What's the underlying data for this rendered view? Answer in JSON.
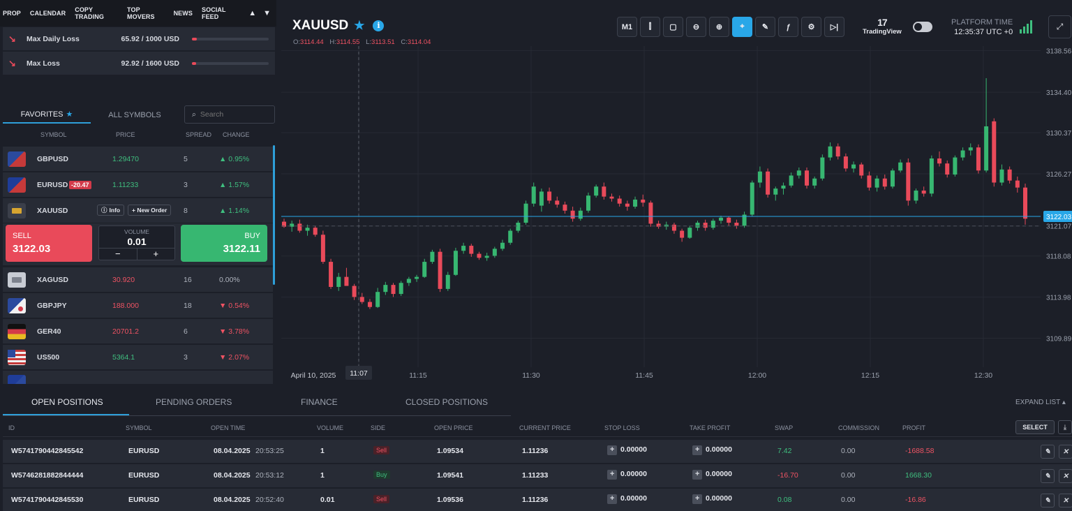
{
  "nav": {
    "items": [
      "PROP",
      "CALENDAR",
      "COPY TRADING",
      "TOP MOVERS",
      "NEWS",
      "SOCIAL FEED"
    ]
  },
  "risk": [
    {
      "label": "Max Daily Loss",
      "value": "65.92 / 1000 USD",
      "fraction": 0.066
    },
    {
      "label": "Max Loss",
      "value": "92.92 / 1600 USD",
      "fraction": 0.058
    }
  ],
  "watchlist": {
    "tabs": [
      "FAVORITES",
      "ALL SYMBOLS"
    ],
    "search_placeholder": "Search",
    "columns": [
      "SYMBOL",
      "PRICE",
      "SPREAD",
      "CHANGE"
    ],
    "rows": [
      {
        "symbol": "GBPUSD",
        "price": "1.29470",
        "spread": "5",
        "change": "▲ 0.95%",
        "dir": "up"
      },
      {
        "symbol": "EURUSD",
        "badge": "-20.47",
        "price": "1.11233",
        "spread": "3",
        "change": "▲ 1.57%",
        "dir": "up"
      },
      {
        "symbol": "XAUUSD",
        "info": "Info",
        "new_order": "+ New Order",
        "spread": "8",
        "change": "▲ 1.14%",
        "dir": "up"
      },
      {
        "symbol": "XAGUSD",
        "price": "30.920",
        "spread": "16",
        "change": "0.00%",
        "dir": "flat"
      },
      {
        "symbol": "GBPJPY",
        "price": "188.000",
        "spread": "18",
        "change": "▼ 0.54%",
        "dir": "down"
      },
      {
        "symbol": "GER40",
        "price": "20701.2",
        "spread": "6",
        "change": "▼ 3.78%",
        "dir": "down"
      },
      {
        "symbol": "US500",
        "price": "5364.1",
        "spread": "3",
        "change": "▼ 2.07%",
        "dir": "down"
      }
    ]
  },
  "trade": {
    "sell_label": "SELL",
    "sell_price": "3122.03",
    "volume_label": "VOLUME",
    "volume": "0.01",
    "buy_label": "BUY",
    "buy_price": "3122.11"
  },
  "chart": {
    "symbol": "XAUUSD",
    "ohlc": {
      "o": "3114.44",
      "h": "3114.55",
      "l": "3113.51",
      "c": "3114.04"
    },
    "timeframe": "M1",
    "tradingview": "TradingView",
    "platform_time_label": "PLATFORM TIME",
    "platform_time": "12:35:37 UTC +0",
    "current_price": "3122.03"
  },
  "chart_data": {
    "type": "candlestick",
    "y_ticks": [
      "3138.56",
      "3134.40",
      "3130.37",
      "3126.27",
      "3122.03",
      "3121.07",
      "3118.08",
      "3113.98",
      "3109.89"
    ],
    "x_ticks": [
      "April 10, 2025",
      "11:07",
      "11:15",
      "11:30",
      "11:45",
      "12:00",
      "12:15",
      "12:30"
    ],
    "ylim": [
      3107,
      3139
    ],
    "candles": [
      [
        3121.5,
        3121.8,
        3120.9,
        3121.0
      ],
      [
        3121.0,
        3121.6,
        3120.5,
        3121.3
      ],
      [
        3121.3,
        3121.7,
        3120.4,
        3120.6
      ],
      [
        3120.6,
        3121.2,
        3120.1,
        3120.9
      ],
      [
        3120.9,
        3121.1,
        3120.0,
        3120.2
      ],
      [
        3120.2,
        3120.6,
        3117.3,
        3117.5
      ],
      [
        3117.5,
        3117.8,
        3114.8,
        3115.0
      ],
      [
        3115.0,
        3116.4,
        3114.6,
        3116.0
      ],
      [
        3116.0,
        3116.9,
        3115.4,
        3115.1
      ],
      [
        3115.1,
        3115.3,
        3113.7,
        3114.0
      ],
      [
        3114.0,
        3114.4,
        3113.3,
        3113.5
      ],
      [
        3113.5,
        3113.8,
        3112.8,
        3113.0
      ],
      [
        3113.0,
        3114.9,
        3112.9,
        3114.5
      ],
      [
        3114.5,
        3115.5,
        3114.2,
        3115.2
      ],
      [
        3115.2,
        3115.4,
        3114.0,
        3114.3
      ],
      [
        3114.3,
        3115.6,
        3114.1,
        3115.4
      ],
      [
        3115.4,
        3116.0,
        3115.1,
        3115.8
      ],
      [
        3115.8,
        3116.2,
        3115.5,
        3116.0
      ],
      [
        3116.0,
        3117.8,
        3115.9,
        3117.5
      ],
      [
        3117.5,
        3118.7,
        3117.3,
        3118.5
      ],
      [
        3118.5,
        3118.8,
        3114.5,
        3114.8
      ],
      [
        3114.8,
        3116.5,
        3114.6,
        3116.2
      ],
      [
        3116.2,
        3118.9,
        3116.1,
        3118.6
      ],
      [
        3118.6,
        3119.4,
        3118.3,
        3119.1
      ],
      [
        3119.1,
        3119.3,
        3118.0,
        3118.3
      ],
      [
        3118.3,
        3118.5,
        3117.7,
        3117.9
      ],
      [
        3117.9,
        3118.4,
        3117.6,
        3118.1
      ],
      [
        3118.1,
        3119.0,
        3117.9,
        3118.8
      ],
      [
        3118.8,
        3119.7,
        3118.6,
        3119.4
      ],
      [
        3119.4,
        3120.8,
        3119.2,
        3120.6
      ],
      [
        3120.6,
        3121.6,
        3120.4,
        3121.4
      ],
      [
        3121.4,
        3123.6,
        3121.2,
        3123.3
      ],
      [
        3123.3,
        3125.4,
        3123.0,
        3125.0
      ],
      [
        3123.1,
        3124.8,
        3122.5,
        3124.5
      ],
      [
        3124.5,
        3124.9,
        3123.3,
        3123.6
      ],
      [
        3123.6,
        3124.0,
        3122.9,
        3123.2
      ],
      [
        3123.2,
        3123.5,
        3122.3,
        3122.6
      ],
      [
        3122.6,
        3123.0,
        3121.5,
        3121.8
      ],
      [
        3121.8,
        3122.9,
        3121.6,
        3122.6
      ],
      [
        3122.6,
        3124.4,
        3122.4,
        3124.1
      ],
      [
        3124.1,
        3125.2,
        3123.9,
        3125.0
      ],
      [
        3125.0,
        3125.4,
        3123.7,
        3124.0
      ],
      [
        3124.0,
        3124.3,
        3123.5,
        3123.8
      ],
      [
        3123.8,
        3124.1,
        3123.0,
        3123.3
      ],
      [
        3123.3,
        3123.6,
        3122.6,
        3123.0
      ],
      [
        3123.0,
        3124.0,
        3122.8,
        3123.7
      ],
      [
        3123.7,
        3124.2,
        3123.0,
        3123.4
      ],
      [
        3123.4,
        3123.6,
        3121.0,
        3121.3
      ],
      [
        3121.3,
        3121.6,
        3120.8,
        3121.0
      ],
      [
        3121.0,
        3121.5,
        3120.7,
        3121.2
      ],
      [
        3121.2,
        3121.4,
        3120.3,
        3120.6
      ],
      [
        3120.6,
        3120.8,
        3119.5,
        3119.9
      ],
      [
        3119.9,
        3121.1,
        3119.8,
        3120.9
      ],
      [
        3120.9,
        3121.6,
        3120.6,
        3121.4
      ],
      [
        3121.4,
        3121.7,
        3120.6,
        3120.9
      ],
      [
        3120.9,
        3121.8,
        3120.7,
        3121.6
      ],
      [
        3121.6,
        3122.1,
        3121.3,
        3121.9
      ],
      [
        3121.9,
        3122.0,
        3121.1,
        3121.4
      ],
      [
        3121.4,
        3121.7,
        3120.8,
        3121.1
      ],
      [
        3121.1,
        3122.5,
        3120.9,
        3122.2
      ],
      [
        3122.2,
        3125.6,
        3122.0,
        3125.4
      ],
      [
        3125.4,
        3127.0,
        3124.9,
        3126.5
      ],
      [
        3126.5,
        3126.8,
        3123.9,
        3124.2
      ],
      [
        3124.2,
        3125.0,
        3123.6,
        3124.8
      ],
      [
        3124.8,
        3125.4,
        3124.2,
        3125.1
      ],
      [
        3125.1,
        3126.4,
        3124.9,
        3126.1
      ],
      [
        3126.1,
        3126.9,
        3125.8,
        3126.6
      ],
      [
        3126.6,
        3126.9,
        3124.8,
        3125.1
      ],
      [
        3125.1,
        3126.0,
        3124.8,
        3125.8
      ],
      [
        3125.8,
        3128.2,
        3125.6,
        3127.9
      ],
      [
        3127.9,
        3129.4,
        3127.6,
        3129.0
      ],
      [
        3129.0,
        3129.3,
        3127.7,
        3128.0
      ],
      [
        3128.0,
        3128.3,
        3126.5,
        3126.8
      ],
      [
        3126.8,
        3127.5,
        3126.4,
        3127.2
      ],
      [
        3127.2,
        3127.4,
        3125.8,
        3126.1
      ],
      [
        3126.1,
        3126.5,
        3124.6,
        3124.9
      ],
      [
        3124.9,
        3126.1,
        3124.5,
        3125.8
      ],
      [
        3125.8,
        3126.2,
        3124.7,
        3125.0
      ],
      [
        3125.0,
        3126.8,
        3124.8,
        3126.6
      ],
      [
        3126.6,
        3127.7,
        3126.4,
        3127.4
      ],
      [
        3127.4,
        3127.8,
        3123.1,
        3123.6
      ],
      [
        3123.6,
        3124.8,
        3123.3,
        3124.6
      ],
      [
        3124.6,
        3125.0,
        3124.0,
        3124.3
      ],
      [
        3124.3,
        3128.1,
        3124.0,
        3127.8
      ],
      [
        3127.8,
        3128.5,
        3127.0,
        3127.3
      ],
      [
        3127.3,
        3127.6,
        3125.9,
        3126.2
      ],
      [
        3126.2,
        3128.1,
        3126.0,
        3127.9
      ],
      [
        3127.9,
        3128.9,
        3127.6,
        3128.6
      ],
      [
        3128.6,
        3129.3,
        3128.1,
        3128.9
      ],
      [
        3128.9,
        3129.2,
        3126.3,
        3126.6
      ],
      [
        3126.6,
        3135.8,
        3126.4,
        3131.0
      ],
      [
        3131.5,
        3131.8,
        3125.0,
        3125.4
      ],
      [
        3125.4,
        3127.2,
        3125.1,
        3126.7
      ],
      [
        3126.7,
        3127.0,
        3125.3,
        3125.6
      ],
      [
        3125.6,
        3126.0,
        3124.4,
        3124.9
      ],
      [
        3124.9,
        3125.3,
        3121.2,
        3121.8
      ]
    ]
  },
  "bottom": {
    "tabs": [
      "OPEN POSITIONS",
      "PENDING ORDERS",
      "FINANCE",
      "CLOSED POSITIONS"
    ],
    "expand_label": "EXPAND LIST",
    "select_label": "SELECT",
    "columns": [
      "ID",
      "SYMBOL",
      "OPEN TIME",
      "VOLUME",
      "SIDE",
      "OPEN PRICE",
      "CURRENT PRICE",
      "STOP LOSS",
      "TAKE PROFIT",
      "SWAP",
      "COMMISSION",
      "PROFIT"
    ],
    "rows": [
      {
        "id": "W5741790442845542",
        "symbol": "EURUSD",
        "date": "08.04.2025",
        "time": "20:53:25",
        "volume": "1",
        "side": "Sell",
        "open": "1.09534",
        "current": "1.11236",
        "sl": "0.00000",
        "tp": "0.00000",
        "swap": "7.42",
        "swap_dir": "up",
        "commission": "0.00",
        "profit": "-1688.58",
        "profit_dir": "down"
      },
      {
        "id": "W5746281882844444",
        "symbol": "EURUSD",
        "date": "08.04.2025",
        "time": "20:53:12",
        "volume": "1",
        "side": "Buy",
        "open": "1.09541",
        "current": "1.11233",
        "sl": "0.00000",
        "tp": "0.00000",
        "swap": "-16.70",
        "swap_dir": "down",
        "commission": "0.00",
        "profit": "1668.30",
        "profit_dir": "up"
      },
      {
        "id": "W5741790442845530",
        "symbol": "EURUSD",
        "date": "08.04.2025",
        "time": "20:52:40",
        "volume": "0.01",
        "side": "Sell",
        "open": "1.09536",
        "current": "1.11236",
        "sl": "0.00000",
        "tp": "0.00000",
        "swap": "0.08",
        "swap_dir": "up",
        "commission": "0.00",
        "profit": "-16.86",
        "profit_dir": "down"
      }
    ]
  }
}
